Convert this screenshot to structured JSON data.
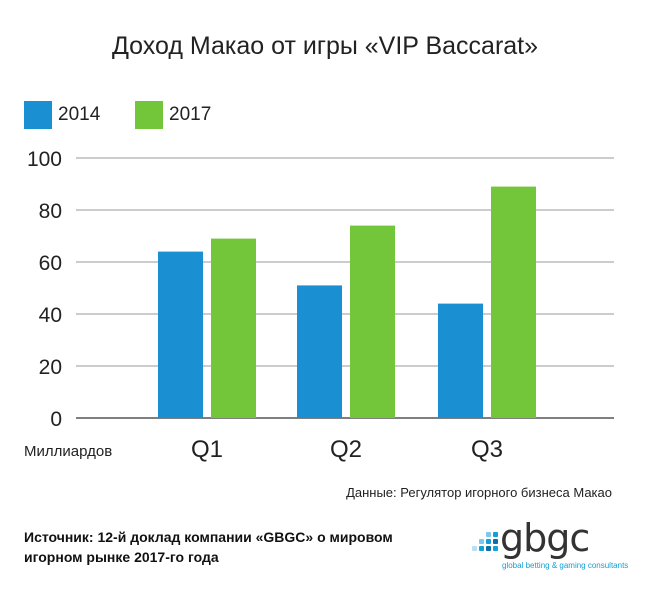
{
  "chart_data": {
    "type": "bar",
    "title": "Доход Макао от игры «VIP Baccarat»",
    "categories": [
      "Q1",
      "Q2",
      "Q3"
    ],
    "series": [
      {
        "name": "2014",
        "values": [
          64,
          51,
          44
        ],
        "color": "#1a8fd1"
      },
      {
        "name": "2017",
        "values": [
          69,
          74,
          89
        ],
        "color": "#73c63a"
      }
    ],
    "ylim": [
      0,
      100
    ],
    "yticks": [
      "0",
      "20",
      "40",
      "60",
      "80",
      "100"
    ],
    "ylabel": "Миллиардов",
    "xlabel": "",
    "grid": true,
    "legend_position": "top-left"
  },
  "source_note": "Данные: Регулятор игорного бизнеса Макао",
  "footer_source": "Источник: 12-й доклад компании «GBGC» о мировом игорном рынке 2017-го года",
  "logo": {
    "word": "gbgc",
    "tagline": "global betting & gaming consultants",
    "accent_color": "#14a0d6"
  }
}
